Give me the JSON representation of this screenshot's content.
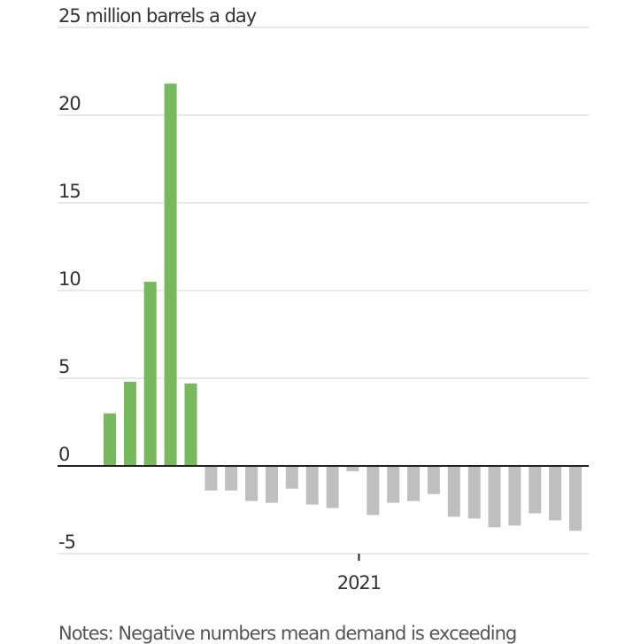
{
  "chart_data": {
    "type": "bar",
    "title": "",
    "ylabel": "million barrels a day",
    "xlabel": "",
    "ylim": [
      -5,
      25
    ],
    "yticks": [
      -5,
      0,
      5,
      10,
      15,
      20,
      25
    ],
    "ytick_labels": [
      "-5",
      "0",
      "5",
      "10",
      "15",
      "20",
      "25 million barrels a day"
    ],
    "x_tick_label": "2021",
    "x_tick_bar_index": 12.35,
    "grid": true,
    "colors": {
      "positive": "#77b95c",
      "negative": "#bfbfbf",
      "grid": "#e2e2e2",
      "zero_line": "#222222"
    },
    "values": [
      3.0,
      4.8,
      10.5,
      21.8,
      4.7,
      -1.4,
      -1.4,
      -2.0,
      -2.1,
      -1.3,
      -2.2,
      -2.4,
      -0.3,
      -2.8,
      -2.1,
      -2.0,
      -1.6,
      -2.9,
      -3.0,
      -3.5,
      -3.4,
      -2.7,
      -3.1,
      -3.7
    ]
  },
  "note": "Notes: Negative numbers mean demand is exceeding"
}
